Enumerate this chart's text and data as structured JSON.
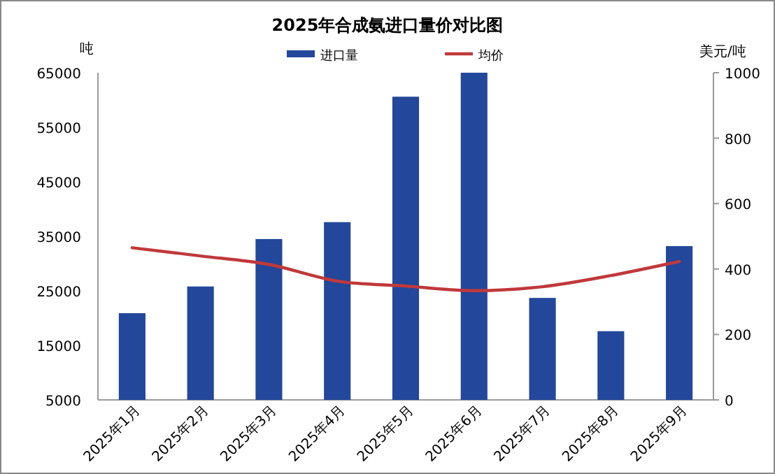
{
  "chart_data": {
    "type": "bar",
    "title": "2025年合成氨进口量价对比图",
    "ylabel": "吨",
    "y2label": "美元/吨",
    "categories": [
      "2025年1月",
      "2025年2月",
      "2025年3月",
      "2025年4月",
      "2025年5月",
      "2025年6月",
      "2025年7月",
      "2025年8月",
      "2025年9月"
    ],
    "series": [
      {
        "name": "进口量",
        "color": "#23479a",
        "values": [
          20900,
          25800,
          34500,
          37600,
          60600,
          65000,
          23700,
          17600,
          33200
        ]
      },
      {
        "name": "均价",
        "type": "line",
        "axis": "y2",
        "color": "#c0393b",
        "values": [
          465,
          440,
          414,
          363,
          348,
          334,
          346,
          380,
          423
        ]
      }
    ],
    "ylim": [
      5000,
      65000
    ],
    "yticks": [
      5000,
      15000,
      25000,
      35000,
      45000,
      55000,
      65000
    ],
    "y2lim": [
      0,
      1000
    ],
    "y2ticks": [
      0,
      200,
      400,
      600,
      800,
      1000
    ],
    "legend": "top",
    "grid": false
  }
}
